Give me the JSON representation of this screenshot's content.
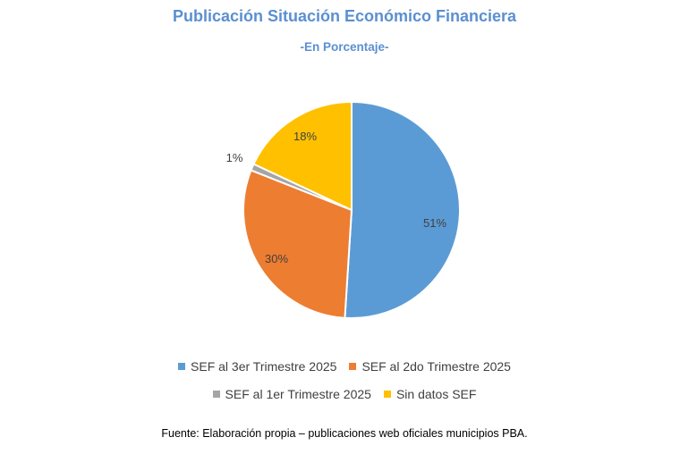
{
  "chart_data": {
    "type": "pie",
    "title": "Publicación Situación Económico Financiera",
    "subtitle": "-En Porcentaje-",
    "slices": [
      {
        "label": "SEF al 3er Trimestre 2025",
        "value": 51,
        "display": "51%",
        "color": "#5b9bd5"
      },
      {
        "label": "SEF al 2do Trimestre 2025",
        "value": 30,
        "display": "30%",
        "color": "#ed7d31"
      },
      {
        "label": "SEF al 1er Trimestre 2025",
        "value": 1,
        "display": "1%",
        "color": "#a5a5a5"
      },
      {
        "label": "Sin datos SEF",
        "value": 18,
        "display": "18%",
        "color": "#ffc000"
      }
    ],
    "legend_position": "bottom"
  },
  "source": "Fuente: Elaboración propia – publicaciones web oficiales municipios PBA."
}
